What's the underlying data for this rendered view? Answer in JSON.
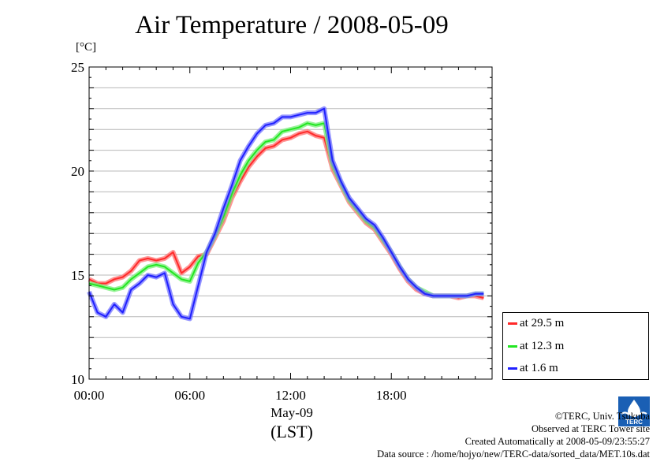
{
  "chart_data": {
    "type": "line",
    "title": "Air Temperature / 2008-05-09",
    "ylabel": "[°C]",
    "xlabel_date": "May-09",
    "xlabel_tz": "(LST)",
    "ylim": [
      10,
      25
    ],
    "yticks": [
      "10",
      "15",
      "20",
      "25"
    ],
    "xlim": [
      0,
      24
    ],
    "xticks": [
      "00:00",
      "06:00",
      "12:00",
      "18:00"
    ],
    "grid": "horizontal",
    "legend_position": "bottom-right outside",
    "series": [
      {
        "name": "at 29.5 m",
        "color": "#ff2a2a",
        "halo": "#ff7b7b",
        "x": [
          0,
          0.5,
          1,
          1.5,
          2,
          2.5,
          3,
          3.5,
          4,
          4.5,
          5,
          5.5,
          6,
          6.5,
          7,
          7.5,
          8,
          8.5,
          9,
          9.5,
          10,
          10.5,
          11,
          11.5,
          12,
          12.5,
          13,
          13.5,
          14,
          14.5,
          15,
          15.5,
          16,
          16.5,
          17,
          17.5,
          18,
          18.5,
          19,
          19.5,
          20,
          20.5,
          21,
          21.5,
          22,
          22.5,
          23,
          23.5
        ],
        "y": [
          14.8,
          14.6,
          14.6,
          14.8,
          14.9,
          15.2,
          15.7,
          15.8,
          15.7,
          15.8,
          16.1,
          15.1,
          15.4,
          15.9,
          16.0,
          16.8,
          17.6,
          18.7,
          19.5,
          20.2,
          20.7,
          21.1,
          21.2,
          21.5,
          21.6,
          21.8,
          21.9,
          21.7,
          21.6,
          20.1,
          19.3,
          18.5,
          18.0,
          17.5,
          17.2,
          16.6,
          16.0,
          15.3,
          14.7,
          14.3,
          14.1,
          14.0,
          14.0,
          14.0,
          13.9,
          14.0,
          14.0,
          13.9
        ]
      },
      {
        "name": "at 12.3 m",
        "color": "#22e622",
        "halo": "#7ef07e",
        "x": [
          0,
          0.5,
          1,
          1.5,
          2,
          2.5,
          3,
          3.5,
          4,
          4.5,
          5,
          5.5,
          6,
          6.5,
          7,
          7.5,
          8,
          8.5,
          9,
          9.5,
          10,
          10.5,
          11,
          11.5,
          12,
          12.5,
          13,
          13.5,
          14,
          14.5,
          15,
          15.5,
          16,
          16.5,
          17,
          17.5,
          18,
          18.5,
          19,
          19.5,
          20,
          20.5,
          21,
          21.5,
          22,
          22.5,
          23,
          23.5
        ],
        "y": [
          14.6,
          14.5,
          14.4,
          14.3,
          14.4,
          14.8,
          15.1,
          15.4,
          15.5,
          15.4,
          15.1,
          14.8,
          14.7,
          15.6,
          16.1,
          16.9,
          17.8,
          18.9,
          19.8,
          20.5,
          21.0,
          21.4,
          21.5,
          21.9,
          22.0,
          22.1,
          22.3,
          22.2,
          22.3,
          20.3,
          19.4,
          18.6,
          18.1,
          17.6,
          17.3,
          16.7,
          16.1,
          15.4,
          14.8,
          14.4,
          14.2,
          14.0,
          14.0,
          14.0,
          14.0,
          14.0,
          14.1,
          14.1
        ]
      },
      {
        "name": "at 1.6 m",
        "color": "#2020ff",
        "halo": "#7b7bff",
        "x": [
          0,
          0.5,
          1,
          1.5,
          2,
          2.5,
          3,
          3.5,
          4,
          4.5,
          5,
          5.5,
          6,
          6.5,
          7,
          7.5,
          8,
          8.5,
          9,
          9.5,
          10,
          10.5,
          11,
          11.5,
          12,
          12.5,
          13,
          13.5,
          14,
          14.5,
          15,
          15.5,
          16,
          16.5,
          17,
          17.5,
          18,
          18.5,
          19,
          19.5,
          20,
          20.5,
          21,
          21.5,
          22,
          22.5,
          23,
          23.5
        ],
        "y": [
          14.2,
          13.2,
          13.0,
          13.6,
          13.2,
          14.3,
          14.6,
          15.0,
          14.9,
          15.1,
          13.6,
          13.0,
          12.9,
          14.5,
          16.1,
          17.0,
          18.2,
          19.3,
          20.5,
          21.2,
          21.8,
          22.2,
          22.3,
          22.6,
          22.6,
          22.7,
          22.8,
          22.8,
          23.0,
          20.5,
          19.5,
          18.7,
          18.2,
          17.7,
          17.4,
          16.8,
          16.1,
          15.4,
          14.8,
          14.4,
          14.1,
          14.0,
          14.0,
          14.0,
          14.0,
          14.0,
          14.1,
          14.1
        ]
      }
    ]
  },
  "credits": {
    "copyright": "©TERC, Univ. Tsukuba",
    "observed": "Observed at TERC Tower site",
    "created": "Created Automatically at 2008-05-09/23:55:27",
    "source": "Data source : /home/hojyo/new/TERC-data/sorted_data/MET.10s.dat"
  },
  "logo_text": "TERC"
}
